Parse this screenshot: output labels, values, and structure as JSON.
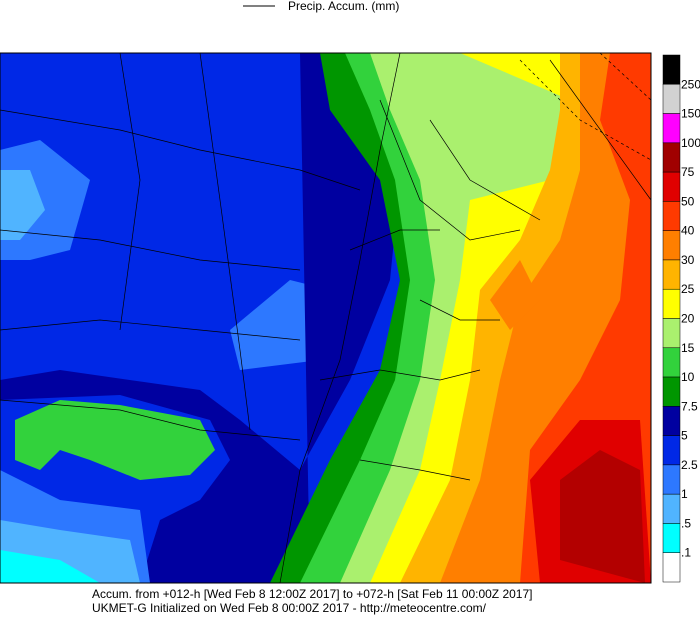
{
  "header": {
    "legend_label": "Precip. Accum. (mm)"
  },
  "colorbar": {
    "labels": [
      "250",
      "150",
      "100",
      "75",
      "50",
      "40",
      "30",
      "25",
      "20",
      "15",
      "10",
      "7.5",
      "5",
      "2.5",
      "1",
      ".5",
      ".1"
    ],
    "colors": [
      "#000000",
      "#d2d2d2",
      "#ff00ff",
      "#a00000",
      "#e00000",
      "#ff3a00",
      "#ff7f00",
      "#ffb400",
      "#ffff00",
      "#aaf06e",
      "#32d23c",
      "#009600",
      "#0000a0",
      "#0028e6",
      "#2d78ff",
      "#50b4ff",
      "#00ffff",
      "#ffffff"
    ]
  },
  "footer": {
    "lines": [
      "Accum. from +012-h [Wed Feb 8 12:00Z 2017] to +072-h [Sat Feb 11 00:00Z 2017]",
      "UKMET-G Initialized on Wed Feb 8 00:00Z 2017 - http://meteocentre.com/"
    ]
  }
}
